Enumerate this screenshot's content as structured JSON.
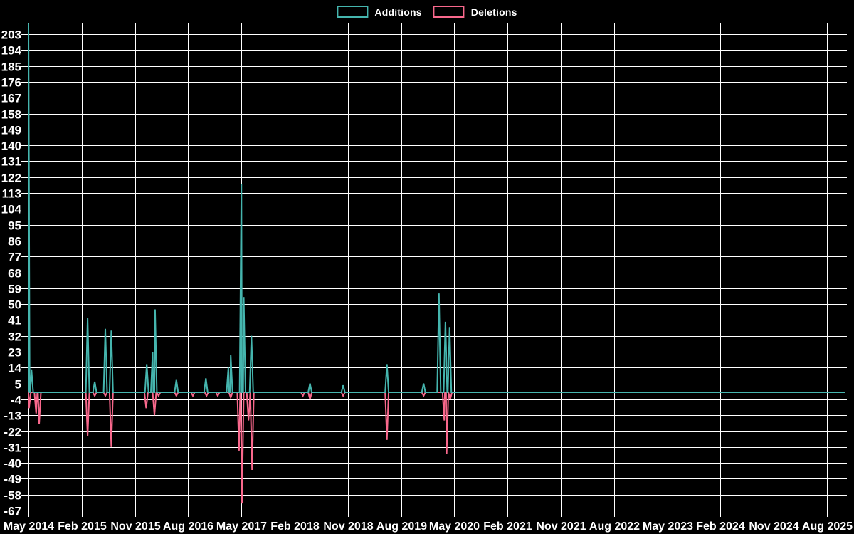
{
  "legend": {
    "items": [
      {
        "label": "Additions",
        "color": "#45b5ae"
      },
      {
        "label": "Deletions",
        "color": "#f8688c"
      }
    ]
  },
  "colors": {
    "background": "#000000",
    "grid": "#ffffff",
    "axis_text": "#ffffff",
    "additions": "#45b5ae",
    "deletions": "#f8688c"
  },
  "chart_data": {
    "type": "line",
    "title": "",
    "xlabel": "",
    "ylabel": "",
    "grid": true,
    "legend_position": "top-center",
    "background": "#000000",
    "x_unit": "months since May 2014",
    "x_axis": {
      "tick_labels": [
        "May 2014",
        "Feb 2015",
        "Nov 2015",
        "Aug 2016",
        "May 2017",
        "Feb 2018",
        "Nov 2018",
        "Aug 2019",
        "May 2020",
        "Feb 2021",
        "Nov 2021",
        "Aug 2022",
        "May 2023",
        "Feb 2024",
        "Nov 2024",
        "Aug 2025"
      ],
      "months_between_ticks": 9,
      "domain_months": [
        0,
        138
      ]
    },
    "y_axis": {
      "ticks": [
        203,
        194,
        185,
        176,
        167,
        158,
        149,
        140,
        131,
        122,
        113,
        104,
        95,
        86,
        77,
        68,
        59,
        50,
        41,
        32,
        23,
        14,
        5,
        -4,
        -13,
        -22,
        -31,
        -40,
        -49,
        -58,
        -67
      ],
      "min": -67,
      "max": 203,
      "step": 9,
      "baseline": 0
    },
    "series": [
      {
        "name": "Additions",
        "color": "#45b5ae",
        "note": "spike at May 2014 is clipped at the top of the plot (~209)",
        "points": [
          [
            0,
            209,
            "May 2014"
          ],
          [
            0.5,
            13,
            "May 2014"
          ],
          [
            10,
            42,
            "Mar 2015"
          ],
          [
            11.2,
            6,
            "Apr 2015"
          ],
          [
            13,
            36,
            "Jun 2015"
          ],
          [
            14,
            35,
            "Jul 2015"
          ],
          [
            20,
            16,
            "Jan 2016"
          ],
          [
            21.0,
            23,
            "Feb 2016"
          ],
          [
            21.4,
            47,
            "Feb 2016"
          ],
          [
            25,
            7,
            "Jun 2016"
          ],
          [
            30,
            8,
            "Nov 2016"
          ],
          [
            33.8,
            14,
            "Feb 2017"
          ],
          [
            34.2,
            21,
            "Mar 2017"
          ],
          [
            36.0,
            118,
            "May 2017"
          ],
          [
            36.4,
            54,
            "May 2017"
          ],
          [
            37.7,
            32,
            "Jun 2017"
          ],
          [
            47.6,
            5,
            "Apr 2018"
          ],
          [
            53.2,
            4,
            "Oct 2018"
          ],
          [
            60.6,
            16,
            "May 2019"
          ],
          [
            66.8,
            5,
            "Dec 2019"
          ],
          [
            69.4,
            56,
            "Feb 2020"
          ],
          [
            70.5,
            40,
            "Mar 2020"
          ],
          [
            71.2,
            37,
            "Apr 2020"
          ]
        ]
      },
      {
        "name": "Deletions",
        "color": "#f8688c",
        "note": "values are negative (below zero baseline)",
        "points": [
          [
            0.1,
            -9,
            "May 2014"
          ],
          [
            1.3,
            -12,
            "Jun 2014"
          ],
          [
            1.8,
            -18,
            "Jul 2014"
          ],
          [
            10,
            -25,
            "Mar 2015"
          ],
          [
            11.2,
            -2,
            "Apr 2015"
          ],
          [
            13,
            -2,
            "Jun 2015"
          ],
          [
            14,
            -31,
            "Jul 2015"
          ],
          [
            19.9,
            -9,
            "Jan 2016"
          ],
          [
            21.3,
            -13,
            "Feb 2016"
          ],
          [
            22,
            -2,
            "Mar 2016"
          ],
          [
            25,
            -2,
            "Jun 2016"
          ],
          [
            27.8,
            -2,
            "Sep 2016"
          ],
          [
            30.1,
            -2,
            "Nov 2016"
          ],
          [
            32,
            -2,
            "Jan 2017"
          ],
          [
            34.2,
            -3,
            "Mar 2017"
          ],
          [
            35.6,
            -33,
            "Apr 2017"
          ],
          [
            36.1,
            -63,
            "May 2017"
          ],
          [
            37.2,
            -16,
            "Jun 2017"
          ],
          [
            37.8,
            -44,
            "Jun 2017"
          ],
          [
            46.4,
            -2,
            "Mar 2018"
          ],
          [
            47.6,
            -4,
            "Apr 2018"
          ],
          [
            53.2,
            -2,
            "Oct 2018"
          ],
          [
            60.6,
            -27,
            "May 2019"
          ],
          [
            66.8,
            -2,
            "Dec 2019"
          ],
          [
            70.3,
            -16,
            "Mar 2020"
          ],
          [
            70.7,
            -35,
            "Mar 2020"
          ],
          [
            71.3,
            -4,
            "Apr 2020"
          ]
        ]
      }
    ]
  }
}
